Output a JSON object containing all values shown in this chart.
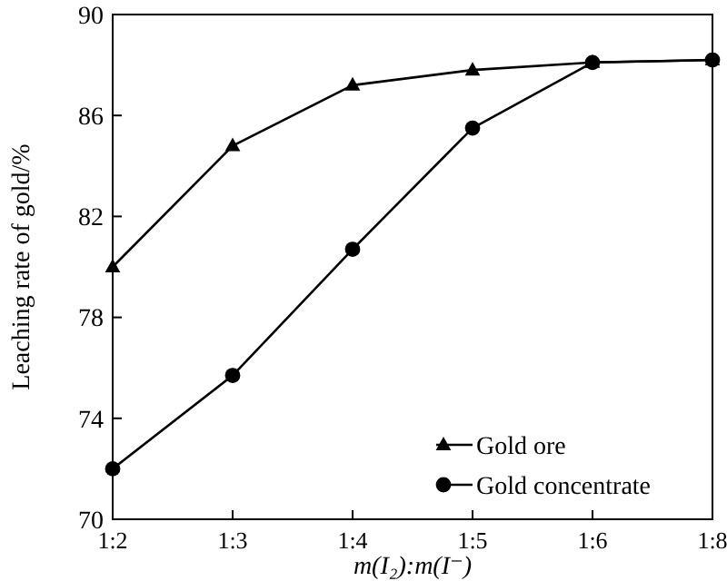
{
  "chart_data": {
    "type": "line",
    "xlabel": "m(I₂):m(I⁻)",
    "ylabel": "Leaching rate of gold/%",
    "categories": [
      "1:2",
      "1:3",
      "1:4",
      "1:5",
      "1:6",
      "1:8"
    ],
    "series": [
      {
        "name": "Gold ore",
        "color": "#000000",
        "marker": "triangle",
        "values": [
          80.0,
          84.8,
          87.2,
          87.8,
          88.1,
          88.2
        ]
      },
      {
        "name": "Gold concentrate",
        "color": "#000000",
        "marker": "circle",
        "values": [
          72.0,
          75.7,
          80.7,
          85.5,
          88.1,
          88.2
        ]
      }
    ],
    "ylim": [
      70,
      90
    ],
    "yticks": [
      70,
      74,
      78,
      82,
      86,
      90
    ],
    "legend": "bottom right",
    "grid": false,
    "line_style": "solid"
  }
}
